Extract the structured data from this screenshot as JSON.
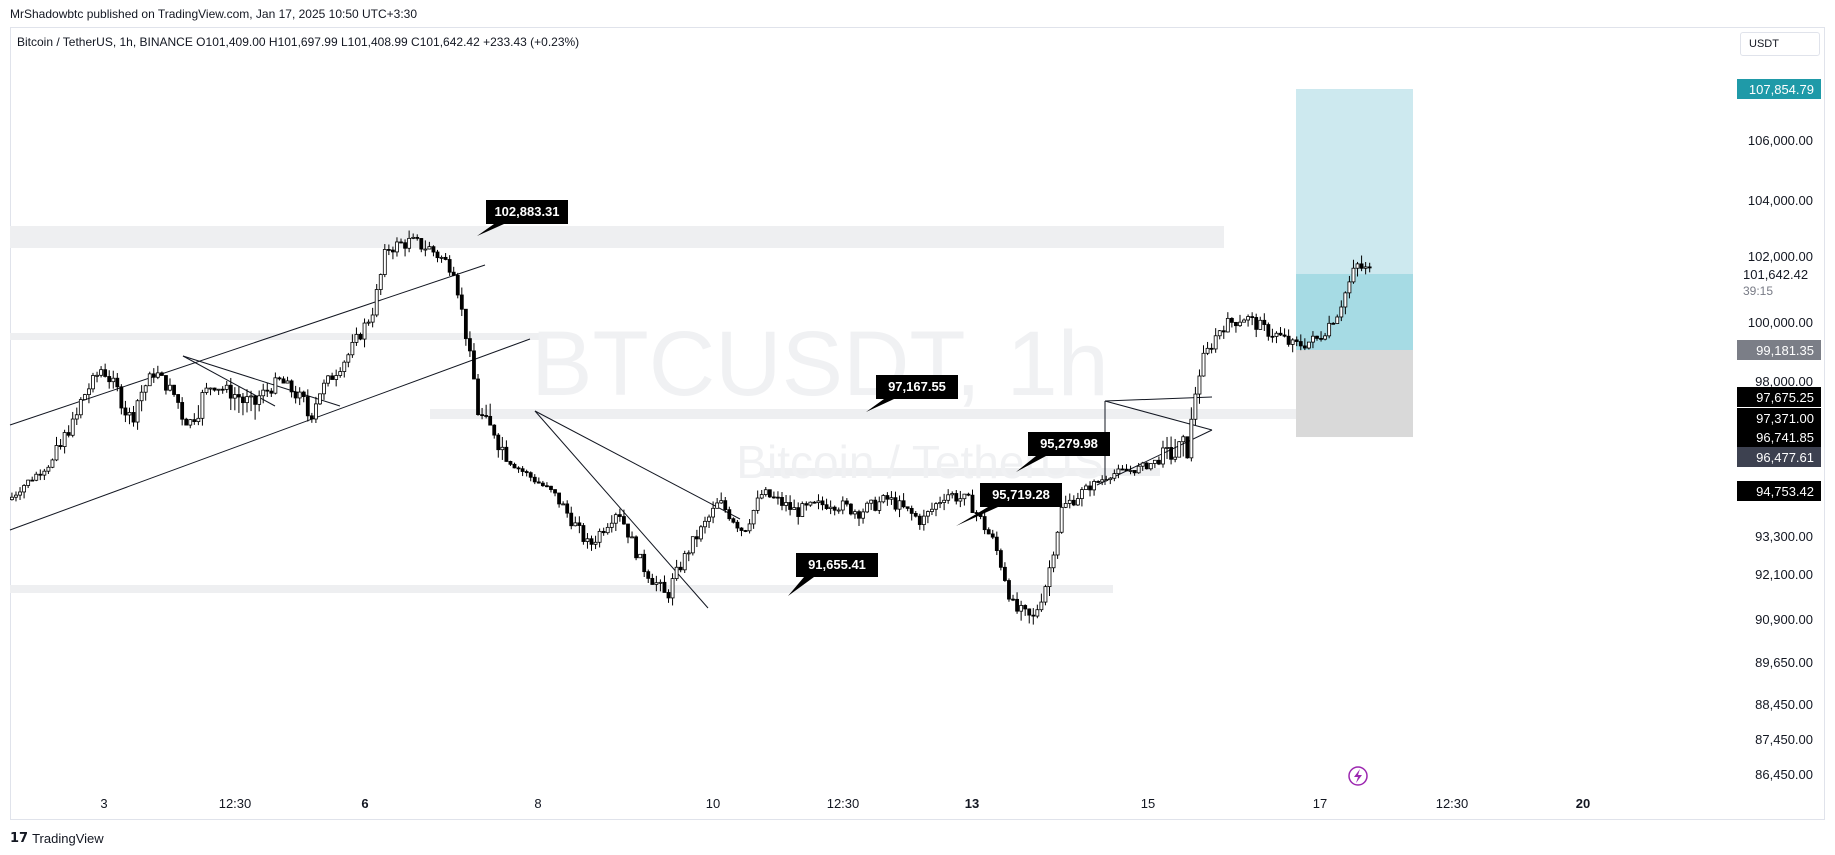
{
  "header": {
    "published": "MrShadowbtc published on TradingView.com, Jan 17, 2025 10:50 UTC+3:30",
    "symbol_line": "Bitcoin / TetherUS, 1h, BINANCE  O101,409.00  H101,697.99  L101,408.99  C101,642.42  +233.43 (+0.23%)",
    "currency": "USDT"
  },
  "watermark": {
    "main": "BTCUSDT, 1h",
    "sub": "Bitcoin / TetherUS"
  },
  "footer": {
    "brand": "TradingView"
  },
  "colors": {
    "candle": "#000000",
    "target_zone": "#cde9ef",
    "target_fill": "#a6dbe4",
    "stop_zone": "#d9d9d9",
    "target_label": "#1f9aa8",
    "current_label": "#000000",
    "gray_label": "#7b7e87",
    "dark_label": "#3d4150",
    "zone_band": "#eeeff1",
    "lightning": "#9c27b0"
  },
  "chart_data": {
    "type": "candlestick",
    "title": "BTCUSDT, 1h",
    "x_ticks": [
      "3",
      "12:30",
      "6",
      "8",
      "10",
      "12:30",
      "13",
      "15",
      "17",
      "12:30",
      "20"
    ],
    "y_ticks": [
      "106,000.00",
      "104,000.00",
      "100,000.00",
      "93,300.00",
      "92,100.00",
      "90,900.00",
      "89,650.00",
      "88,450.00",
      "87,450.00",
      "86,450.00"
    ],
    "price_labels": [
      {
        "text": "107,854.79",
        "style": "target"
      },
      {
        "text": "101,642.42",
        "style": "plain"
      },
      {
        "text": "39:15",
        "style": "plain-small"
      },
      {
        "text": "99,181.35",
        "style": "gray"
      },
      {
        "text": "97,675.25",
        "style": "black"
      },
      {
        "text": "97,371.00",
        "style": "black"
      },
      {
        "text": "96,741.85",
        "style": "black"
      },
      {
        "text": "96,477.61",
        "style": "dark"
      },
      {
        "text": "94,753.42",
        "style": "black"
      }
    ],
    "partial_ticks": [
      "102,000.00",
      "98,000.00"
    ],
    "callouts": [
      "102,883.31",
      "97,167.55",
      "95,279.98",
      "95,719.28",
      "91,655.41"
    ],
    "position": {
      "target": 107854.79,
      "entry": 99181.35,
      "stop": 96741.85,
      "current": 101642.42
    },
    "close_path": [
      [
        0,
        94480
      ],
      [
        0.55,
        96700
      ],
      [
        0.95,
        98600
      ],
      [
        1.25,
        97300
      ],
      [
        1.5,
        98500
      ],
      [
        1.85,
        97200
      ],
      [
        2.1,
        98100
      ],
      [
        2.5,
        97500
      ],
      [
        2.8,
        98200
      ],
      [
        3.1,
        97400
      ],
      [
        3.5,
        99000
      ],
      [
        3.75,
        100300
      ],
      [
        3.9,
        102400
      ],
      [
        4.15,
        102600
      ],
      [
        4.35,
        102400
      ],
      [
        4.6,
        101800
      ],
      [
        4.85,
        97500
      ],
      [
        5.05,
        96800
      ],
      [
        5.3,
        95800
      ],
      [
        5.7,
        94400
      ],
      [
        6.0,
        93000
      ],
      [
        6.3,
        94200
      ],
      [
        6.55,
        92400
      ],
      [
        6.8,
        91500
      ],
      [
        7.05,
        93000
      ],
      [
        7.35,
        94400
      ],
      [
        7.6,
        93500
      ],
      [
        7.8,
        94700
      ],
      [
        8.15,
        94100
      ],
      [
        8.5,
        94400
      ],
      [
        8.8,
        94100
      ],
      [
        9.1,
        94500
      ],
      [
        9.45,
        93800
      ],
      [
        9.7,
        94700
      ],
      [
        9.95,
        94400
      ],
      [
        10.2,
        93100
      ],
      [
        10.4,
        91200
      ],
      [
        10.6,
        90900
      ],
      [
        10.75,
        92000
      ],
      [
        10.9,
        94200
      ],
      [
        11.1,
        94700
      ],
      [
        11.4,
        95600
      ],
      [
        11.7,
        95900
      ],
      [
        11.95,
        96400
      ],
      [
        12.2,
        96600
      ],
      [
        12.35,
        98800
      ],
      [
        12.55,
        99900
      ],
      [
        12.8,
        100200
      ],
      [
        13.0,
        99800
      ],
      [
        13.15,
        99600
      ],
      [
        13.3,
        99300
      ],
      [
        13.55,
        99500
      ],
      [
        13.75,
        100300
      ],
      [
        13.95,
        101900
      ],
      [
        14.1,
        101700
      ]
    ]
  }
}
